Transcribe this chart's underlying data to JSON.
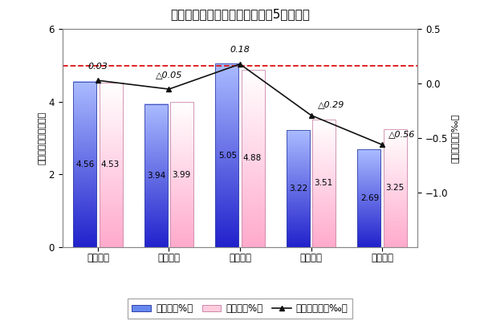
{
  "title": "転入率・転出率・社会増減率の5圈域比較",
  "categories": [
    "岐阜圈域",
    "西濃圈域",
    "中濃圈域",
    "東濃圈域",
    "飛驄圈域"
  ],
  "inflow": [
    4.56,
    3.94,
    5.05,
    3.22,
    2.69
  ],
  "outflow": [
    4.53,
    3.99,
    4.88,
    3.51,
    3.25
  ],
  "net_rate": [
    0.03,
    -0.05,
    0.18,
    -0.29,
    -0.56
  ],
  "net_labels": [
    "0.03",
    "△0.05",
    "0.18",
    "△0.29",
    "△0.56"
  ],
  "bar_blue_top": "#aabbff",
  "bar_blue_bottom": "#2222cc",
  "bar_pink_top": "#ffffff",
  "bar_pink_bottom": "#ffaacc",
  "line_color": "#111111",
  "dashed_line_color": "#dd1111",
  "dashed_line_y": 5.0,
  "ylabel_left": "転入率・転出率（％）",
  "ylabel_right": "社会増減率（‰）",
  "ylim_left": [
    0,
    6
  ],
  "ylim_right": [
    -1.5,
    0.5
  ],
  "yticks_left": [
    0,
    2,
    4,
    6
  ],
  "yticks_right": [
    -1.0,
    -0.5,
    0,
    0.5
  ],
  "legend_inflow": "転入率（%）",
  "legend_outflow": "転出率（%）",
  "legend_net": "社会増減率（‰）",
  "background_color": "#ffffff",
  "title_fontsize": 11,
  "tick_fontsize": 8.5,
  "label_fontsize": 8,
  "annot_fontsize": 8,
  "bar_width": 0.35
}
